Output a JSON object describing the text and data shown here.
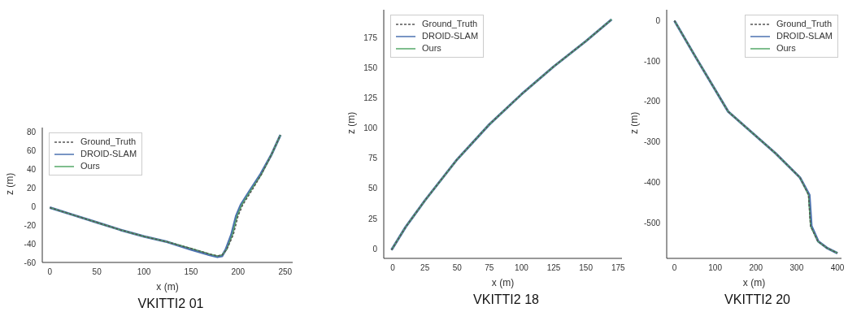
{
  "chart_data": [
    {
      "type": "line",
      "title": "VKITTI2 01",
      "xlabel": "x (m)",
      "ylabel": "z (m)",
      "xlim": [
        -8,
        258
      ],
      "ylim": [
        -60,
        85
      ],
      "xticks": [
        0,
        50,
        100,
        150,
        200,
        250
      ],
      "yticks": [
        -60,
        -40,
        -20,
        0,
        20,
        40,
        60,
        80
      ],
      "grid": false,
      "legend": "top left",
      "series": [
        {
          "name": "Ground_Truth",
          "color": "#555555",
          "line_style": "dashed",
          "x": [
            0,
            25,
            50,
            75,
            100,
            125,
            150,
            170,
            178,
            183,
            188,
            195,
            200,
            205,
            215,
            225,
            235,
            245
          ],
          "values": [
            -1,
            -9,
            -17,
            -25,
            -32,
            -38,
            -45,
            -51,
            -53,
            -52,
            -46,
            -30,
            -10,
            2,
            18,
            35,
            55,
            77
          ]
        },
        {
          "name": "DROID-SLAM",
          "color": "#4c72b0",
          "line_style": "solid",
          "x": [
            0,
            25,
            50,
            75,
            100,
            125,
            150,
            170,
            178,
            183,
            187,
            193,
            198,
            203,
            213,
            224,
            235,
            245
          ],
          "values": [
            -1,
            -9,
            -17,
            -25,
            -32,
            -38,
            -46,
            -52,
            -54,
            -53,
            -46,
            -30,
            -10,
            2,
            18,
            35,
            55,
            77
          ]
        },
        {
          "name": "Ours",
          "color": "#55a868",
          "line_style": "solid",
          "x": [
            0,
            25,
            50,
            75,
            100,
            125,
            150,
            170,
            178,
            183,
            188,
            194,
            199,
            204,
            214,
            225,
            235,
            245
          ],
          "values": [
            -1,
            -9,
            -17,
            -25,
            -32,
            -38,
            -45,
            -51,
            -53,
            -52,
            -46,
            -30,
            -10,
            2,
            18,
            35,
            55,
            77
          ]
        }
      ]
    },
    {
      "type": "line",
      "title": "VKITTI2 18",
      "xlabel": "x (m)",
      "ylabel": "z (m)",
      "xlim": [
        -7,
        178
      ],
      "ylim": [
        -8,
        198
      ],
      "xticks": [
        0,
        25,
        50,
        75,
        100,
        125,
        150,
        175
      ],
      "yticks": [
        0,
        25,
        50,
        75,
        100,
        125,
        150,
        175
      ],
      "grid": false,
      "legend": "top left",
      "series": [
        {
          "name": "Ground_Truth",
          "color": "#555555",
          "line_style": "dashed",
          "x": [
            -1,
            10,
            25,
            50,
            75,
            100,
            125,
            150,
            170
          ],
          "values": [
            -1,
            18,
            40,
            74,
            103,
            128,
            151,
            172,
            190
          ]
        },
        {
          "name": "DROID-SLAM",
          "color": "#4c72b0",
          "line_style": "solid",
          "x": [
            -1,
            10,
            25,
            50,
            75,
            100,
            125,
            150,
            170
          ],
          "values": [
            -1,
            18,
            40,
            74,
            103,
            128,
            151,
            172,
            190
          ]
        },
        {
          "name": "Ours",
          "color": "#55a868",
          "line_style": "solid",
          "x": [
            -1,
            10,
            25,
            50,
            75,
            100,
            125,
            150,
            170
          ],
          "values": [
            -1,
            18,
            40,
            74,
            103,
            128,
            151,
            172,
            190
          ]
        }
      ]
    },
    {
      "type": "line",
      "title": "VKITTI2 20",
      "xlabel": "x (m)",
      "ylabel": "z (m)",
      "xlim": [
        -19,
        410
      ],
      "ylim": [
        -588,
        27
      ],
      "xticks": [
        0,
        100,
        200,
        300,
        400
      ],
      "yticks": [
        -500,
        -400,
        -300,
        -200,
        -100,
        0
      ],
      "grid": false,
      "legend": "top right",
      "series": [
        {
          "name": "Ground_Truth",
          "color": "#555555",
          "line_style": "dashed",
          "x": [
            0,
            52,
            132,
            248,
            308,
            329,
            334,
            352,
            374,
            400
          ],
          "values": [
            0,
            -90,
            -225,
            -328,
            -388,
            -431,
            -508,
            -546,
            -562,
            -575
          ]
        },
        {
          "name": "DROID-SLAM",
          "color": "#4c72b0",
          "line_style": "solid",
          "x": [
            0,
            52,
            132,
            248,
            308,
            331,
            336,
            353,
            374,
            400
          ],
          "values": [
            0,
            -90,
            -225,
            -328,
            -388,
            -431,
            -508,
            -546,
            -562,
            -575
          ]
        },
        {
          "name": "Ours",
          "color": "#55a868",
          "line_style": "solid",
          "x": [
            0,
            52,
            132,
            248,
            308,
            329,
            334,
            352,
            374,
            400
          ],
          "values": [
            0,
            -90,
            -225,
            -328,
            -388,
            -431,
            -508,
            -546,
            -562,
            -575
          ]
        }
      ]
    }
  ]
}
